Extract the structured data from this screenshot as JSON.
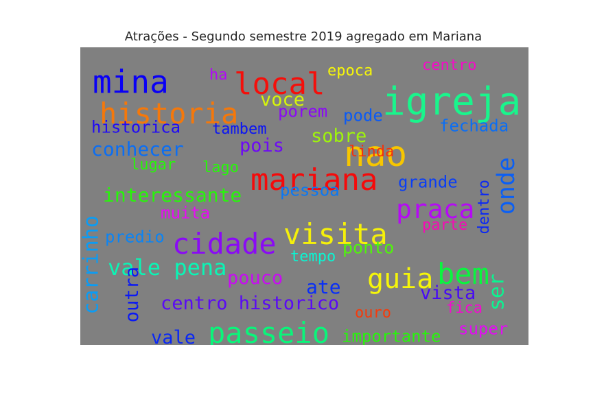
{
  "title": "Atrações - Segundo semestre 2019 agregado em Mariana",
  "chart_data": {
    "type": "wordcloud",
    "title": "Atrações - Segundo semestre 2019 agregado em Mariana",
    "background": "#808080",
    "words": [
      {
        "text": "igreja",
        "weight": 56,
        "color": "#19f58c",
        "vertical": false
      },
      {
        "text": "nao",
        "weight": 51,
        "color": "#f7c600",
        "vertical": false
      },
      {
        "text": "mina",
        "weight": 46,
        "color": "#0a00f5",
        "vertical": false
      },
      {
        "text": "mariana",
        "weight": 44,
        "color": "#f50a0a",
        "vertical": false
      },
      {
        "text": "local",
        "weight": 44,
        "color": "#f50f0a",
        "vertical": false
      },
      {
        "text": "historia",
        "weight": 42,
        "color": "#f5780a",
        "vertical": false
      },
      {
        "text": "cidade",
        "weight": 42,
        "color": "#8a0af5",
        "vertical": false
      },
      {
        "text": "visita",
        "weight": 42,
        "color": "#f5f00a",
        "vertical": false
      },
      {
        "text": "passeio",
        "weight": 42,
        "color": "#0af57a",
        "vertical": false
      },
      {
        "text": "bem",
        "weight": 42,
        "color": "#0af53f",
        "vertical": false
      },
      {
        "text": "guia",
        "weight": 40,
        "color": "#f5f50a",
        "vertical": false
      },
      {
        "text": "praca",
        "weight": 38,
        "color": "#b50af5",
        "vertical": false
      },
      {
        "text": "onde",
        "weight": 35,
        "color": "#0a5ff5",
        "vertical": true
      },
      {
        "text": "vale pena",
        "weight": 32,
        "color": "#0af5b5",
        "vertical": false
      },
      {
        "text": "carrinho",
        "weight": 30,
        "color": "#0a9cf5",
        "vertical": true
      },
      {
        "text": "ser",
        "weight": 30,
        "color": "#0af590",
        "vertical": true
      },
      {
        "text": "interessante",
        "weight": 28,
        "color": "#27f50a",
        "vertical": false
      },
      {
        "text": "conhecer",
        "weight": 28,
        "color": "#0a6ef5",
        "vertical": false
      },
      {
        "text": "ate",
        "weight": 28,
        "color": "#0a30f5",
        "vertical": false
      },
      {
        "text": "centro historico",
        "weight": 27,
        "color": "#5a0af5",
        "vertical": false
      },
      {
        "text": "pouco",
        "weight": 27,
        "color": "#c90af5",
        "vertical": false
      },
      {
        "text": "voce",
        "weight": 27,
        "color": "#d6f50a",
        "vertical": false
      },
      {
        "text": "sobre",
        "weight": 27,
        "color": "#9ff50a",
        "vertical": false
      },
      {
        "text": "pois",
        "weight": 27,
        "color": "#6e0af5",
        "vertical": false
      },
      {
        "text": "vista",
        "weight": 27,
        "color": "#480af5",
        "vertical": false
      },
      {
        "text": "vale",
        "weight": 27,
        "color": "#0a28f5",
        "vertical": false
      },
      {
        "text": "outra",
        "weight": 27,
        "color": "#0a19f5",
        "vertical": true
      },
      {
        "text": "ponto",
        "weight": 25,
        "color": "#4ff50a",
        "vertical": false
      },
      {
        "text": "pessoa",
        "weight": 24,
        "color": "#0a78f5",
        "vertical": false
      },
      {
        "text": "historica",
        "weight": 24,
        "color": "#200af5",
        "vertical": false
      },
      {
        "text": "muita",
        "weight": 24,
        "color": "#e80af5",
        "vertical": false
      },
      {
        "text": "predio",
        "weight": 24,
        "color": "#0a84f5",
        "vertical": false
      },
      {
        "text": "grande",
        "weight": 24,
        "color": "#0a3ef5",
        "vertical": false
      },
      {
        "text": "porem",
        "weight": 24,
        "color": "#8a0af5",
        "vertical": false
      },
      {
        "text": "pode",
        "weight": 24,
        "color": "#0a5af5",
        "vertical": false
      },
      {
        "text": "fechada",
        "weight": 24,
        "color": "#0a6ef5",
        "vertical": false
      },
      {
        "text": "importante",
        "weight": 24,
        "color": "#27f50a",
        "vertical": false
      },
      {
        "text": "super",
        "weight": 24,
        "color": "#e40af5",
        "vertical": false
      },
      {
        "text": "epoca",
        "weight": 22,
        "color": "#f5f50a",
        "vertical": false
      },
      {
        "text": "parte",
        "weight": 22,
        "color": "#f50ab5",
        "vertical": false
      },
      {
        "text": "ouro",
        "weight": 22,
        "color": "#f53a0a",
        "vertical": false
      },
      {
        "text": "fica",
        "weight": 22,
        "color": "#f50ad0",
        "vertical": false
      },
      {
        "text": "dentro",
        "weight": 22,
        "color": "#0a28f5",
        "vertical": true
      },
      {
        "text": "tambem",
        "weight": 22,
        "color": "#0a14f5",
        "vertical": false
      },
      {
        "text": "centro",
        "weight": 22,
        "color": "#f50ac8",
        "vertical": false
      },
      {
        "text": "linda",
        "weight": 22,
        "color": "#f5320a",
        "vertical": false
      },
      {
        "text": "ha",
        "weight": 22,
        "color": "#b20af5",
        "vertical": false
      },
      {
        "text": "lugar",
        "weight": 22,
        "color": "#27f50a",
        "vertical": false
      },
      {
        "text": "lago",
        "weight": 22,
        "color": "#27f50a",
        "vertical": false
      },
      {
        "text": "tempo",
        "weight": 22,
        "color": "#0af5d2",
        "vertical": false
      }
    ]
  }
}
